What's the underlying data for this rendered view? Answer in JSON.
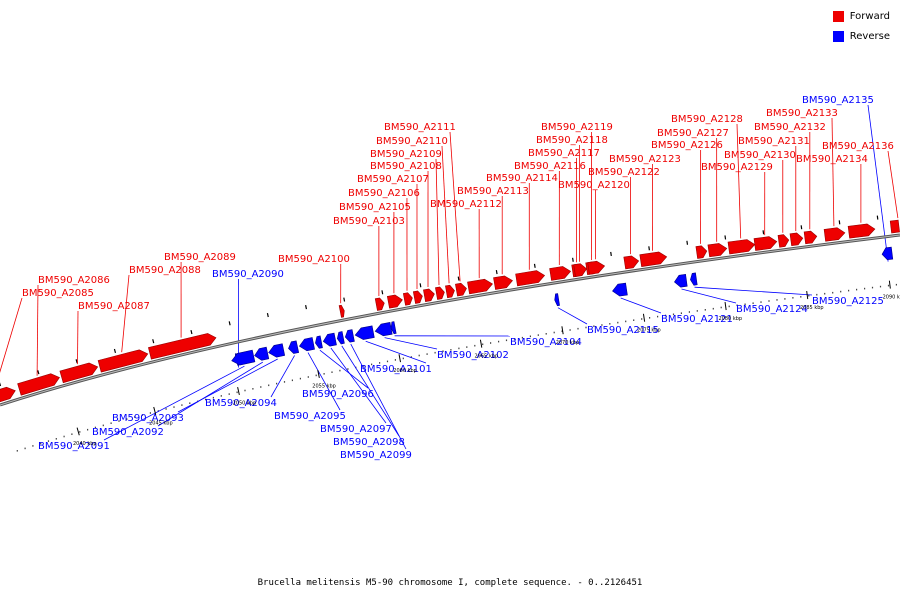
{
  "legend": {
    "forward": {
      "label": "Forward",
      "color": "#ee0000"
    },
    "reverse": {
      "label": "Reverse",
      "color": "#0000ff"
    }
  },
  "caption": "Brucella melitensis M5-90 chromosome I, complete sequence. - 0..2126451",
  "axis": {
    "unit": "kbp",
    "ticks": [
      2040,
      2045,
      2050,
      2055,
      2060,
      2065,
      2070,
      2075,
      2080,
      2085,
      2090
    ]
  },
  "genes": [
    {
      "id": "BM590_A2085",
      "strand": "forward"
    },
    {
      "id": "BM590_A2086",
      "strand": "forward"
    },
    {
      "id": "BM590_A2087",
      "strand": "forward"
    },
    {
      "id": "BM590_A2088",
      "strand": "forward"
    },
    {
      "id": "BM590_A2089",
      "strand": "forward"
    },
    {
      "id": "BM590_A2090",
      "strand": "reverse"
    },
    {
      "id": "BM590_A2091",
      "strand": "reverse"
    },
    {
      "id": "BM590_A2092",
      "strand": "reverse"
    },
    {
      "id": "BM590_A2093",
      "strand": "reverse"
    },
    {
      "id": "BM590_A2094",
      "strand": "reverse"
    },
    {
      "id": "BM590_A2095",
      "strand": "reverse"
    },
    {
      "id": "BM590_A2096",
      "strand": "reverse"
    },
    {
      "id": "BM590_A2097",
      "strand": "reverse"
    },
    {
      "id": "BM590_A2098",
      "strand": "reverse"
    },
    {
      "id": "BM590_A2099",
      "strand": "reverse"
    },
    {
      "id": "BM590_A2100",
      "strand": "forward"
    },
    {
      "id": "BM590_A2101",
      "strand": "reverse"
    },
    {
      "id": "BM590_A2102",
      "strand": "reverse"
    },
    {
      "id": "BM590_A2103",
      "strand": "forward"
    },
    {
      "id": "BM590_A2104",
      "strand": "reverse"
    },
    {
      "id": "BM590_A2105",
      "strand": "forward"
    },
    {
      "id": "BM590_A2106",
      "strand": "forward"
    },
    {
      "id": "BM590_A2107",
      "strand": "forward"
    },
    {
      "id": "BM590_A2108",
      "strand": "forward"
    },
    {
      "id": "BM590_A2109",
      "strand": "forward"
    },
    {
      "id": "BM590_A2110",
      "strand": "forward"
    },
    {
      "id": "BM590_A2111",
      "strand": "forward"
    },
    {
      "id": "BM590_A2112",
      "strand": "forward"
    },
    {
      "id": "BM590_A2113",
      "strand": "forward"
    },
    {
      "id": "BM590_A2114",
      "strand": "forward"
    },
    {
      "id": "BM590_A2115",
      "strand": "reverse"
    },
    {
      "id": "BM590_A2116",
      "strand": "forward"
    },
    {
      "id": "BM590_A2117",
      "strand": "forward"
    },
    {
      "id": "BM590_A2118",
      "strand": "forward"
    },
    {
      "id": "BM590_A2119",
      "strand": "forward"
    },
    {
      "id": "BM590_A2120",
      "strand": "forward"
    },
    {
      "id": "BM590_A2121",
      "strand": "reverse"
    },
    {
      "id": "BM590_A2122",
      "strand": "forward"
    },
    {
      "id": "BM590_A2123",
      "strand": "forward"
    },
    {
      "id": "BM590_A2124",
      "strand": "reverse"
    },
    {
      "id": "BM590_A2125",
      "strand": "reverse"
    },
    {
      "id": "BM590_A2126",
      "strand": "forward"
    },
    {
      "id": "BM590_A2127",
      "strand": "forward"
    },
    {
      "id": "BM590_A2128",
      "strand": "forward"
    },
    {
      "id": "BM590_A2129",
      "strand": "forward"
    },
    {
      "id": "BM590_A2130",
      "strand": "forward"
    },
    {
      "id": "BM590_A2131",
      "strand": "forward"
    },
    {
      "id": "BM590_A2132",
      "strand": "forward"
    },
    {
      "id": "BM590_A2133",
      "strand": "forward"
    },
    {
      "id": "BM590_A2134",
      "strand": "forward"
    },
    {
      "id": "BM590_A2135",
      "strand": "reverse"
    },
    {
      "id": "BM590_A2136",
      "strand": "forward"
    }
  ]
}
